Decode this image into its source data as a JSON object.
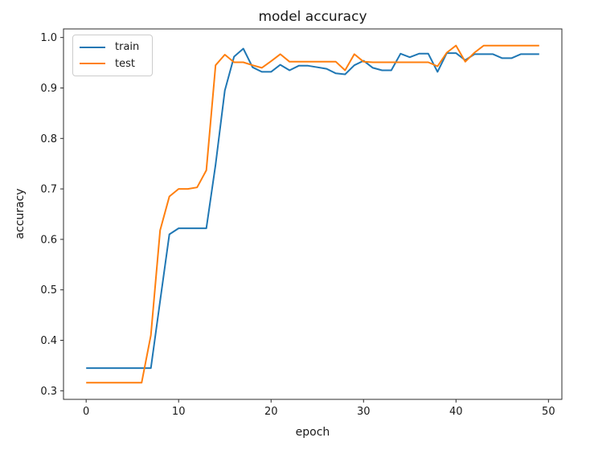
{
  "figure": {
    "background_color": "#ffffff",
    "spine_color": "#2b2b2b",
    "text_color": "#1a1a1a"
  },
  "chart_data": {
    "type": "line",
    "title": "model accuracy",
    "xlabel": "epoch",
    "ylabel": "accuracy",
    "grid": false,
    "legend_position": "upper left",
    "xlim": [
      -2.45,
      51.45
    ],
    "ylim": [
      0.283,
      1.017
    ],
    "xticks": [
      0,
      10,
      20,
      30,
      40,
      50
    ],
    "yticks": [
      0.3,
      0.4,
      0.5,
      0.6,
      0.7,
      0.8,
      0.9,
      1.0
    ],
    "x": [
      0,
      1,
      2,
      3,
      4,
      5,
      6,
      7,
      8,
      9,
      10,
      11,
      12,
      13,
      14,
      15,
      16,
      17,
      18,
      19,
      20,
      21,
      22,
      23,
      24,
      25,
      26,
      27,
      28,
      29,
      30,
      31,
      32,
      33,
      34,
      35,
      36,
      37,
      38,
      39,
      40,
      41,
      42,
      43,
      44,
      45,
      46,
      47,
      48,
      49
    ],
    "series": [
      {
        "name": "train",
        "color": "#1f77b4",
        "values": [
          0.345,
          0.345,
          0.345,
          0.345,
          0.345,
          0.345,
          0.345,
          0.345,
          0.478,
          0.61,
          0.622,
          0.622,
          0.622,
          0.622,
          0.748,
          0.895,
          0.962,
          0.978,
          0.941,
          0.932,
          0.932,
          0.946,
          0.935,
          0.944,
          0.944,
          0.941,
          0.938,
          0.929,
          0.927,
          0.945,
          0.954,
          0.94,
          0.935,
          0.935,
          0.968,
          0.961,
          0.968,
          0.968,
          0.932,
          0.969,
          0.969,
          0.955,
          0.967,
          0.967,
          0.967,
          0.959,
          0.959,
          0.967,
          0.967,
          0.967
        ]
      },
      {
        "name": "test",
        "color": "#ff7f0e",
        "values": [
          0.316,
          0.316,
          0.316,
          0.316,
          0.316,
          0.316,
          0.316,
          0.41,
          0.618,
          0.685,
          0.7,
          0.7,
          0.703,
          0.737,
          0.945,
          0.966,
          0.951,
          0.951,
          0.945,
          0.94,
          0.953,
          0.967,
          0.952,
          0.952,
          0.952,
          0.952,
          0.952,
          0.952,
          0.935,
          0.967,
          0.952,
          0.951,
          0.951,
          0.951,
          0.951,
          0.951,
          0.951,
          0.951,
          0.943,
          0.97,
          0.984,
          0.952,
          0.97,
          0.984,
          0.984,
          0.984,
          0.984,
          0.984,
          0.984,
          0.984
        ]
      }
    ]
  }
}
